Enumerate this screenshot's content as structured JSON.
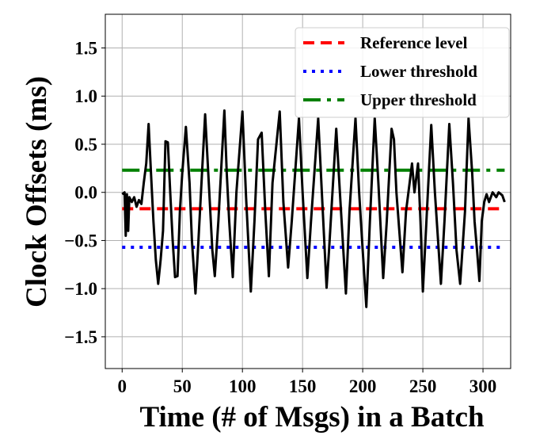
{
  "chart_data": {
    "type": "line",
    "title": "",
    "xlabel": "Time (# of Msgs) in a Batch",
    "ylabel": "Clock Offsets (ms)",
    "xlim": [
      -14,
      323
    ],
    "ylim": [
      -1.83,
      1.85
    ],
    "xticks": [
      0,
      50,
      100,
      150,
      200,
      250,
      300
    ],
    "xtick_labels": [
      "0",
      "50",
      "100",
      "150",
      "200",
      "250",
      "300"
    ],
    "yticks": [
      1.5,
      1.0,
      0.5,
      0.0,
      -0.5,
      -1.0,
      -1.5
    ],
    "ytick_labels": [
      "1.5",
      "1.0",
      "0.5",
      "0.0",
      "−0.5",
      "−1.0",
      "−1.5"
    ],
    "grid": true,
    "legend_position": "top-right",
    "signal": {
      "color": "#000000",
      "x": [
        0,
        2,
        3,
        4,
        5,
        6,
        8,
        10,
        12,
        14,
        16,
        18,
        20,
        22,
        24,
        26,
        28,
        30,
        32,
        34,
        36,
        38,
        40,
        42,
        44,
        46,
        48,
        50,
        53,
        56,
        58,
        61,
        63,
        66,
        69,
        72,
        75,
        77,
        80,
        85,
        87,
        89,
        92,
        95,
        100,
        103,
        107,
        110,
        113,
        116,
        119,
        122,
        125,
        131,
        134,
        138,
        141,
        147,
        150,
        154,
        157,
        163,
        166,
        170,
        172,
        178,
        181,
        186,
        189,
        194,
        197,
        200,
        203,
        206,
        210,
        213,
        217,
        220,
        224,
        226,
        228,
        233,
        236,
        239,
        241,
        243,
        246,
        248,
        250,
        253,
        257,
        260,
        265,
        268,
        272,
        275,
        278,
        281,
        285,
        288,
        291,
        293,
        295,
        297,
        299,
        301,
        303,
        305,
        308,
        311,
        313,
        316,
        318
      ],
      "y": [
        -0.02,
        0.0,
        -0.45,
        -0.02,
        -0.4,
        -0.05,
        -0.1,
        -0.05,
        -0.15,
        -0.08,
        -0.12,
        0.1,
        0.3,
        0.71,
        0.2,
        -0.3,
        -0.7,
        -0.95,
        -0.7,
        -0.4,
        0.53,
        0.52,
        0.0,
        -0.5,
        -0.88,
        -0.87,
        -0.2,
        0.2,
        0.68,
        0.1,
        -0.5,
        -1.05,
        -0.6,
        0.1,
        0.81,
        0.1,
        -0.6,
        -0.87,
        -0.3,
        0.85,
        0.2,
        -0.3,
        -0.88,
        0.0,
        0.84,
        -0.05,
        -1.03,
        -0.3,
        0.55,
        0.62,
        -0.2,
        -0.87,
        0.1,
        0.84,
        -0.1,
        -0.78,
        -0.3,
        0.77,
        0.0,
        -0.89,
        -0.3,
        0.77,
        0.0,
        -0.99,
        -0.6,
        0.66,
        0.0,
        -1.05,
        -0.2,
        0.77,
        0.0,
        -0.6,
        -1.19,
        -0.3,
        0.77,
        0.1,
        -0.89,
        -0.3,
        0.66,
        0.55,
        0.0,
        -0.83,
        -0.2,
        0.1,
        0.3,
        0.0,
        0.3,
        -0.3,
        -1.03,
        -0.3,
        0.7,
        0.0,
        -0.95,
        -0.3,
        0.71,
        0.1,
        -0.6,
        -0.95,
        -0.2,
        0.77,
        0.2,
        -0.3,
        -0.6,
        -0.92,
        -0.3,
        -0.1,
        -0.02,
        -0.1,
        0.0,
        -0.05,
        0.0,
        -0.03,
        -0.1
      ]
    },
    "series": [
      {
        "name": "Reference level",
        "value": -0.17,
        "color": "#ff0000",
        "style": "dashed"
      },
      {
        "name": "Lower threshold",
        "value": -0.57,
        "color": "#0000ff",
        "style": "dotted"
      },
      {
        "name": "Upper threshold",
        "value": 0.23,
        "color": "#008000",
        "style": "dashdot"
      }
    ]
  }
}
